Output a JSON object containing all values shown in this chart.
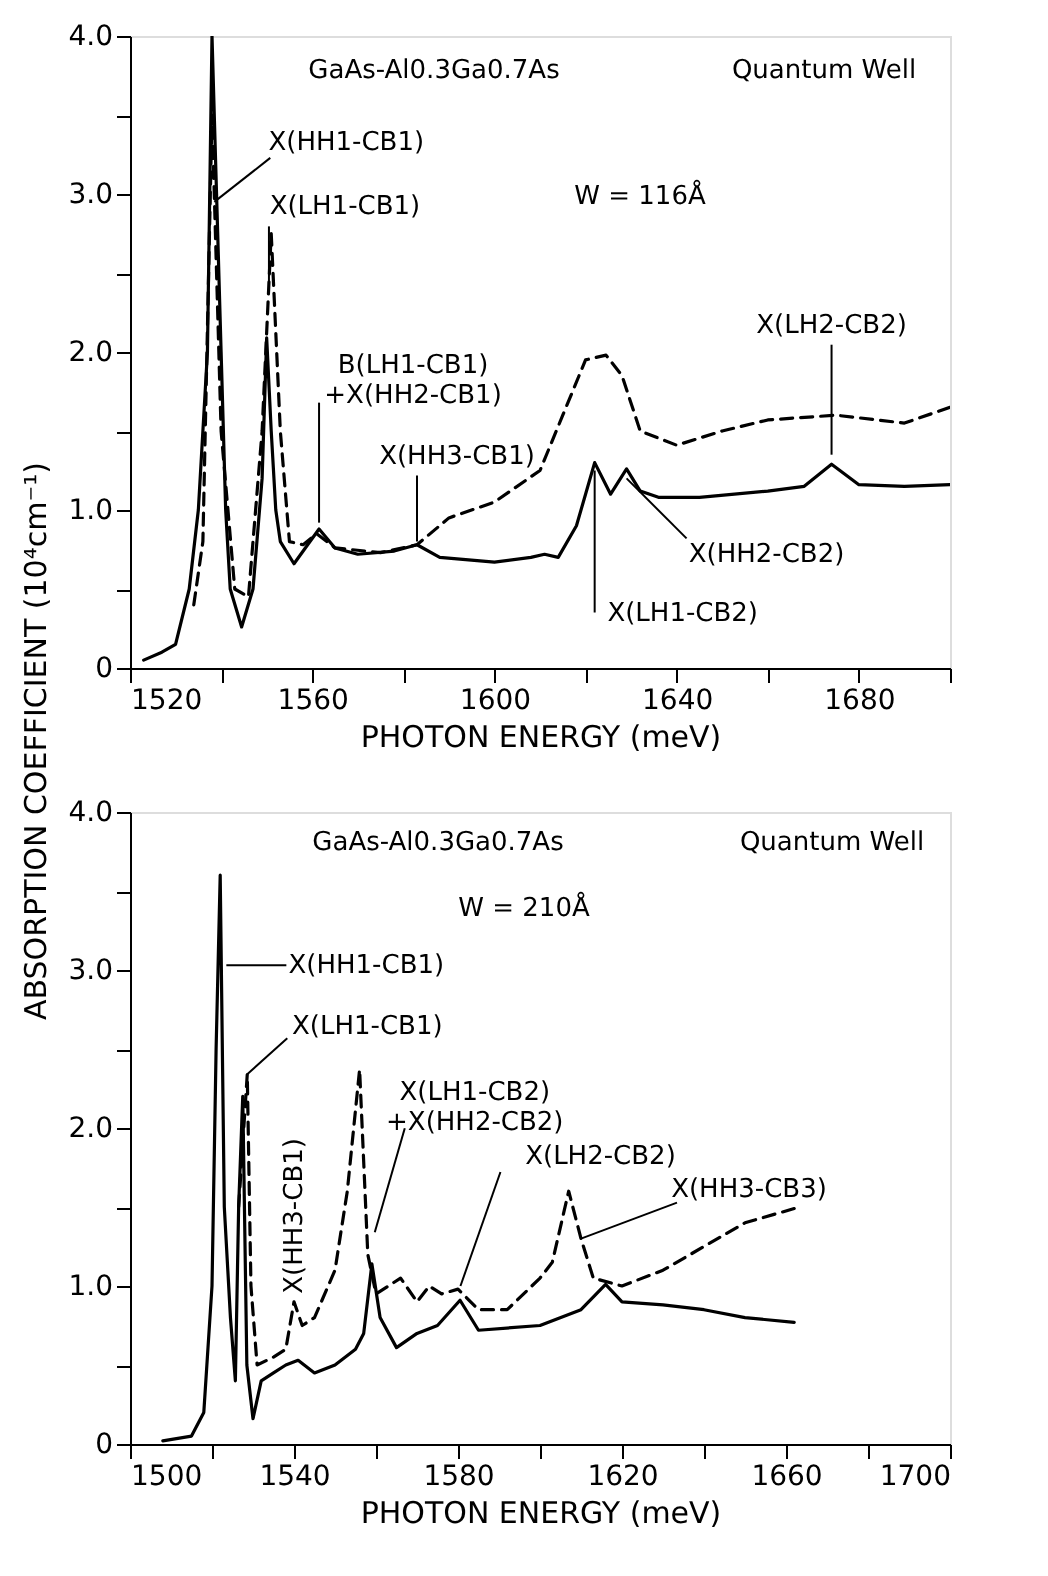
{
  "chart_data": [
    {
      "type": "line",
      "ylabel": "ABSORPTION COEFFICIENT (10⁴cm⁻¹)",
      "xlabel": "PHOTON ENERGY (meV)",
      "xlim": [
        1520,
        1700
      ],
      "ylim": [
        0,
        4
      ],
      "xticks": [
        1520,
        {
          "value": 1540,
          "label": null
        },
        1560,
        {
          "value": 1580,
          "label": null
        },
        1600,
        {
          "value": 1620,
          "label": null
        },
        1640,
        {
          "value": 1660,
          "label": null
        },
        1680,
        {
          "value": 1700,
          "label": null
        }
      ],
      "yticks": [
        0,
        {
          "value": 0.5,
          "label": null
        },
        {
          "value": 1,
          "label": "1.0"
        },
        {
          "value": 1.5,
          "label": null
        },
        {
          "value": 2,
          "label": "2.0"
        },
        {
          "value": 2.5,
          "label": null
        },
        {
          "value": 3,
          "label": "3.0"
        },
        {
          "value": 3.5,
          "label": null
        },
        {
          "value": 4,
          "label": "4.0"
        }
      ],
      "grid": false,
      "legend": false,
      "marker": "none",
      "series": [
        {
          "color": "#000000",
          "line_style": "solid",
          "x": [
            1523,
            1527,
            1530,
            1533,
            1535,
            1537,
            1538,
            1539,
            1540,
            1541,
            1542,
            1544.5,
            1547,
            1549,
            1550,
            1551,
            1552,
            1553,
            1556,
            1559,
            1561.5,
            1565,
            1570,
            1578,
            1583,
            1588,
            1600,
            1608,
            1611,
            1614,
            1618,
            1620,
            1622,
            1625.5,
            1629,
            1632,
            1636,
            1645,
            1660,
            1668,
            1674,
            1680,
            1690,
            1700
          ],
          "values": [
            0.05,
            0.1,
            0.15,
            0.5,
            1.0,
            2.0,
            4.0,
            3.0,
            2.0,
            1.0,
            0.5,
            0.26,
            0.5,
            1.2,
            2.09,
            1.5,
            1.0,
            0.8,
            0.66,
            0.78,
            0.88,
            0.76,
            0.72,
            0.74,
            0.78,
            0.7,
            0.67,
            0.7,
            0.72,
            0.7,
            0.9,
            1.1,
            1.3,
            1.1,
            1.26,
            1.12,
            1.08,
            1.08,
            1.12,
            1.15,
            1.29,
            1.16,
            1.15,
            1.16
          ]
        },
        {
          "color": "#000000",
          "line_style": "dashed",
          "x": [
            1534,
            1536,
            1538,
            1540,
            1543,
            1546,
            1549,
            1551,
            1553,
            1555,
            1558,
            1561,
            1565,
            1575,
            1583,
            1590,
            1600,
            1610,
            1615,
            1620,
            1624.5,
            1628,
            1632,
            1640,
            1650,
            1660,
            1675,
            1690,
            1700
          ],
          "values": [
            0.4,
            0.8,
            3.5,
            1.5,
            0.5,
            0.45,
            1.5,
            2.75,
            1.5,
            0.8,
            0.78,
            0.85,
            0.76,
            0.73,
            0.78,
            0.95,
            1.05,
            1.25,
            1.6,
            1.95,
            1.98,
            1.85,
            1.5,
            1.41,
            1.5,
            1.57,
            1.6,
            1.55,
            1.65
          ]
        }
      ],
      "annotations": [
        "GaAs-Al0.3Ga0.7As",
        "Quantum Well",
        "W = 116Å",
        {
          "text": "X(HH1-CB1)",
          "x": 1538.5,
          "y": 2.95
        },
        {
          "text": "X(LH1-CB1)",
          "x": 1550.5,
          "y": 2.39
        },
        {
          "text": "B(LH1-CB1)\n+X(HH2-CB1)",
          "x": 1561.5,
          "y": 0.92
        },
        {
          "text": "X(HH3-CB1)",
          "x": 1583,
          "y": 0.8
        },
        {
          "text": "X(LH2-CB2)",
          "x": 1674,
          "y": 1.35
        },
        {
          "text": "X(HH2-CB2)",
          "x": 1629,
          "y": 1.2
        },
        {
          "text": "X(LH1-CB2)",
          "x": 1622,
          "y": 1.25
        }
      ]
    },
    {
      "type": "line",
      "xlabel": "PHOTON ENERGY (meV)",
      "xlim": [
        1500,
        1700
      ],
      "ylim": [
        0,
        4
      ],
      "xticks": [
        1500,
        {
          "value": 1520,
          "label": null
        },
        1540,
        {
          "value": 1560,
          "label": null
        },
        1580,
        {
          "value": 1600,
          "label": null
        },
        1620,
        {
          "value": 1640,
          "label": null
        },
        1660,
        {
          "value": 1680,
          "label": null
        },
        1700
      ],
      "yticks": [
        0,
        {
          "value": 0.5,
          "label": null
        },
        {
          "value": 1,
          "label": "1.0"
        },
        {
          "value": 1.5,
          "label": null
        },
        {
          "value": 2,
          "label": "2.0"
        },
        {
          "value": 2.5,
          "label": null
        },
        {
          "value": 3,
          "label": "3.0"
        },
        {
          "value": 3.5,
          "label": null
        },
        {
          "value": 4,
          "label": "4.0"
        }
      ],
      "grid": false,
      "legend": false,
      "marker": "none",
      "series": [
        {
          "color": "#000000",
          "line_style": "solid",
          "x": [
            1508,
            1515,
            1518,
            1520,
            1521,
            1522,
            1523,
            1524.5,
            1525.7,
            1526.5,
            1527.5,
            1528.5,
            1530,
            1532,
            1535,
            1538,
            1541,
            1545,
            1550,
            1555,
            1557,
            1559,
            1561,
            1565,
            1570,
            1575,
            1580.5,
            1585,
            1600,
            1610,
            1616,
            1620,
            1630,
            1640,
            1650,
            1662
          ],
          "values": [
            0.02,
            0.05,
            0.2,
            1.0,
            2.5,
            3.6,
            1.5,
            0.8,
            0.4,
            1.5,
            2.2,
            0.5,
            0.16,
            0.4,
            0.45,
            0.5,
            0.53,
            0.45,
            0.5,
            0.6,
            0.7,
            1.14,
            0.8,
            0.61,
            0.7,
            0.75,
            0.91,
            0.72,
            0.75,
            0.85,
            1.01,
            0.9,
            0.88,
            0.85,
            0.8,
            0.77
          ]
        },
        {
          "color": "#000000",
          "line_style": "dashed",
          "x": [
            1526.5,
            1528.6,
            1529.5,
            1531,
            1535,
            1538,
            1540,
            1542,
            1545,
            1550,
            1553,
            1556,
            1558,
            1560,
            1563,
            1566,
            1570,
            1573,
            1576,
            1580,
            1585,
            1592,
            1600,
            1603,
            1607,
            1610,
            1613,
            1620,
            1630,
            1640,
            1650,
            1662
          ],
          "values": [
            1.5,
            2.34,
            1.0,
            0.5,
            0.55,
            0.6,
            0.9,
            0.75,
            0.8,
            1.1,
            1.6,
            2.37,
            1.2,
            0.95,
            1.0,
            1.05,
            0.9,
            1.0,
            0.95,
            0.98,
            0.85,
            0.85,
            1.05,
            1.15,
            1.6,
            1.3,
            1.05,
            1.0,
            1.1,
            1.25,
            1.4,
            1.49
          ]
        }
      ],
      "annotations": [
        "GaAs-Al0.3Ga0.7As",
        "Quantum Well",
        "W = 210Å",
        {
          "text": "X(HH1-CB1)",
          "x": 1523.5,
          "y": 3.03
        },
        {
          "text": "X(LH1-CB1)",
          "x": 1528.6,
          "y": 2.34
        },
        {
          "text": "X(HH3-CB1)",
          "x": 1540,
          "y": 0.95
        },
        {
          "text": "X(LH1-CB2)\n+X(HH2-CB2)",
          "x": 1559.7,
          "y": 1.34
        },
        {
          "text": "X(LH2-CB2)",
          "x": 1580.6,
          "y": 1.0
        },
        {
          "text": "X(HH3-CB3)",
          "x": 1610,
          "y": 1.3
        }
      ]
    }
  ]
}
